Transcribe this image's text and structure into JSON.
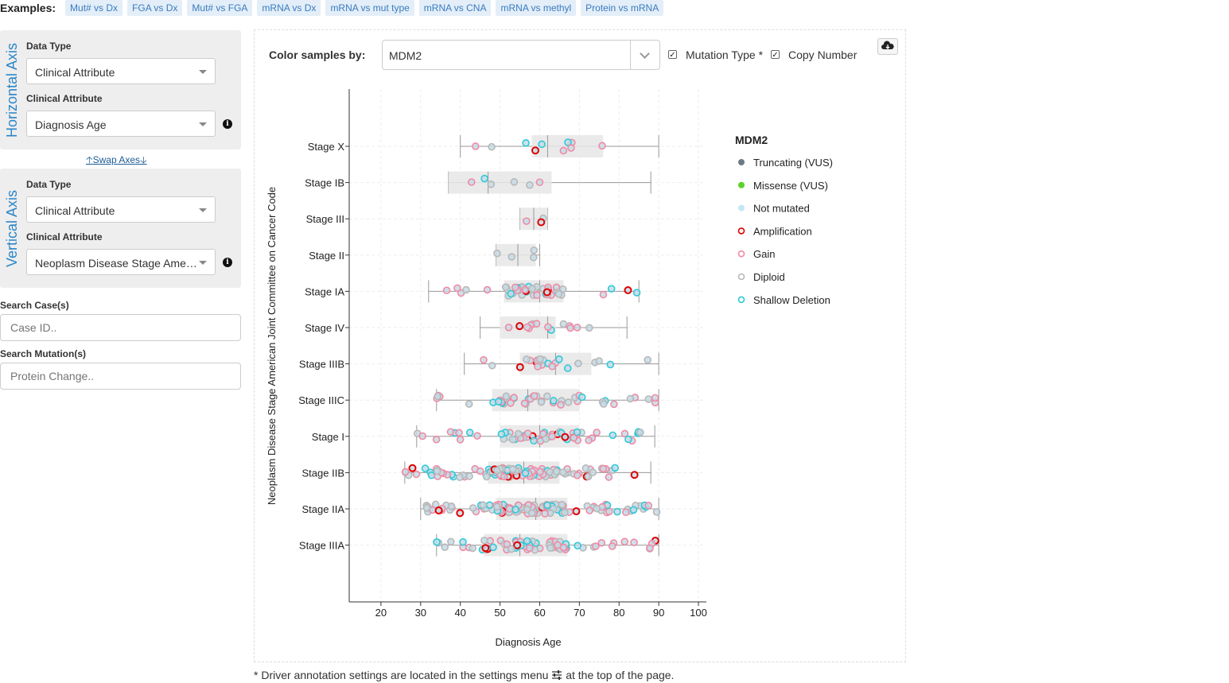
{
  "examples": {
    "label": "Examples:",
    "items": [
      "Mut# vs Dx",
      "FGA vs Dx",
      "Mut# vs FGA",
      "mRNA vs Dx",
      "mRNA vs mut type",
      "mRNA vs CNA",
      "mRNA vs methyl",
      "Protein vs mRNA"
    ]
  },
  "horizontal": {
    "title": "Horizontal Axis",
    "data_type_label": "Data Type",
    "data_type_value": "Clinical Attribute",
    "attr_label": "Clinical Attribute",
    "attr_value": "Diagnosis Age"
  },
  "swap_label": "Swap Axes",
  "vertical": {
    "title": "Vertical Axis",
    "data_type_label": "Data Type",
    "data_type_value": "Clinical Attribute",
    "attr_label": "Clinical Attribute",
    "attr_value": "Neoplasm Disease Stage American Joint Committee on Cancer Code"
  },
  "search_case": {
    "label": "Search Case(s)",
    "placeholder": "Case ID.."
  },
  "search_mutation": {
    "label": "Search Mutation(s)",
    "placeholder": "Protein Change.."
  },
  "color_by": {
    "label": "Color samples by:",
    "value": "MDM2",
    "mutation_type_label": "Mutation Type *",
    "mutation_type_checked": true,
    "copy_number_label": "Copy Number",
    "copy_number_checked": true
  },
  "legend": {
    "title": "MDM2",
    "items": [
      {
        "label": "Truncating (VUS)",
        "fill": "#6c7a86",
        "stroke": "#6c7a86",
        "hollow": false
      },
      {
        "label": "Missense (VUS)",
        "fill": "#5fd12b",
        "stroke": "#5fd12b",
        "hollow": false
      },
      {
        "label": "Not mutated",
        "fill": "#c6e6f3",
        "stroke": "#c6e6f3",
        "hollow": false
      },
      {
        "label": "Amplification",
        "fill": "none",
        "stroke": "#e00000",
        "hollow": true
      },
      {
        "label": "Gain",
        "fill": "none",
        "stroke": "#f08aa4",
        "hollow": true
      },
      {
        "label": "Diploid",
        "fill": "none",
        "stroke": "#b8b8b8",
        "hollow": true
      },
      {
        "label": "Shallow Deletion",
        "fill": "none",
        "stroke": "#2fc9d9",
        "hollow": true
      }
    ]
  },
  "footnote": {
    "text": "* Driver annotation settings are located in the settings menu",
    "suffix": "at the top of the page."
  },
  "chart_data": {
    "type": "box",
    "xlabel": "Diagnosis Age",
    "ylabel": "Neoplasm Disease Stage American Joint Committee on Cancer Code",
    "xlim": [
      12,
      102
    ],
    "xticks": [
      20,
      30,
      40,
      50,
      60,
      70,
      80,
      90,
      100
    ],
    "orientation": "horizontal",
    "categories": [
      "Stage X",
      "Stage IB",
      "Stage III",
      "Stage II",
      "Stage IA",
      "Stage IV",
      "Stage IIIB",
      "Stage IIIC",
      "Stage I",
      "Stage IIB",
      "Stage IIA",
      "Stage IIIA"
    ],
    "boxes": [
      {
        "whisker_low": 40,
        "q1": 58,
        "median": 62,
        "q3": 76,
        "whisker_high": 90,
        "n": 10
      },
      {
        "whisker_low": 37,
        "q1": 37,
        "median": 47,
        "q3": 63,
        "whisker_high": 88,
        "n": 6
      },
      {
        "whisker_low": 55,
        "q1": 55,
        "median": 58.5,
        "q3": 62,
        "whisker_high": 62,
        "n": 3
      },
      {
        "whisker_low": 49,
        "q1": 49,
        "median": 54.5,
        "q3": 59,
        "whisker_high": 60,
        "n": 4
      },
      {
        "whisker_low": 32,
        "q1": 51,
        "median": 60,
        "q3": 66,
        "whisker_high": 85,
        "n": 45
      },
      {
        "whisker_low": 45,
        "q1": 50,
        "median": 62,
        "q3": 64,
        "whisker_high": 82,
        "n": 14
      },
      {
        "whisker_low": 41,
        "q1": 55,
        "median": 64,
        "q3": 73,
        "whisker_high": 90,
        "n": 22
      },
      {
        "whisker_low": 34,
        "q1": 48,
        "median": 57,
        "q3": 70,
        "whisker_high": 90,
        "n": 45
      },
      {
        "whisker_low": 29,
        "q1": 50,
        "median": 60,
        "q3": 70,
        "whisker_high": 89,
        "n": 60
      },
      {
        "whisker_low": 26,
        "q1": 47,
        "median": 56,
        "q3": 65,
        "whisker_high": 88,
        "n": 110
      },
      {
        "whisker_low": 30,
        "q1": 49,
        "median": 59,
        "q3": 67,
        "whisker_high": 90,
        "n": 120
      },
      {
        "whisker_low": 34,
        "q1": 46,
        "median": 55,
        "q3": 67,
        "whisker_high": 90,
        "n": 70
      }
    ]
  }
}
